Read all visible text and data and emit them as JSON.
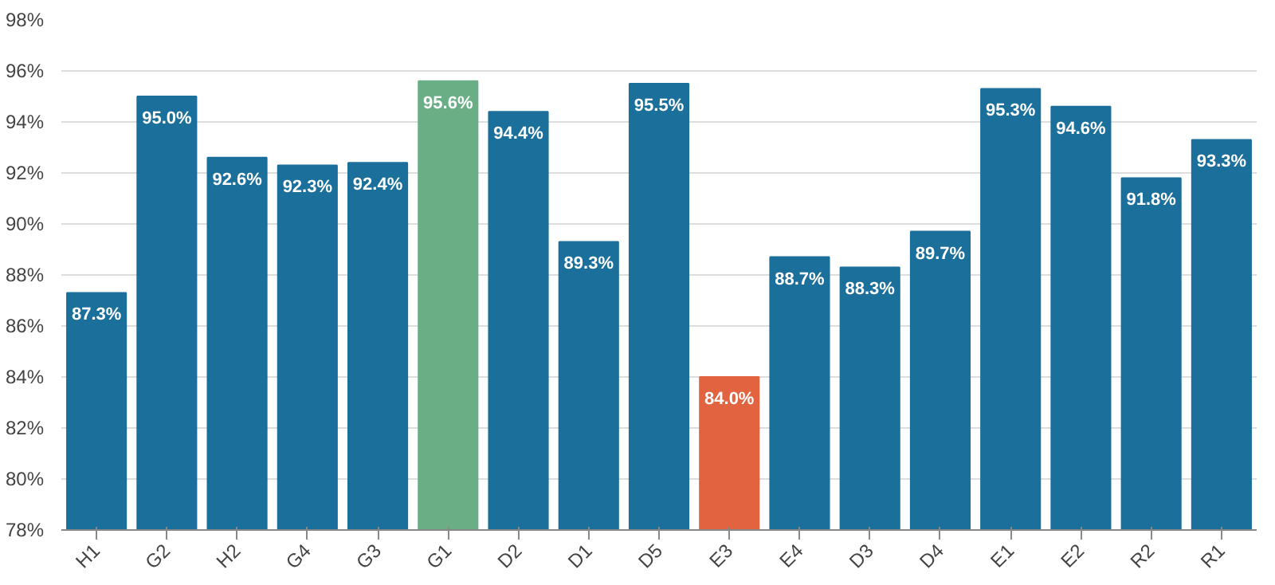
{
  "chart_data": {
    "type": "bar",
    "categories": [
      "H1",
      "G2",
      "H2",
      "G4",
      "G3",
      "G1",
      "D2",
      "D1",
      "D5",
      "E3",
      "E4",
      "D3",
      "D4",
      "E1",
      "E2",
      "R2",
      "R1"
    ],
    "values": [
      87.3,
      95.0,
      92.6,
      92.3,
      92.4,
      95.6,
      94.4,
      89.3,
      95.5,
      84.0,
      88.7,
      88.3,
      89.7,
      95.3,
      94.6,
      91.8,
      93.3
    ],
    "value_labels": [
      "87.3%",
      "95.0%",
      "92.6%",
      "92.3%",
      "92.4%",
      "95.6%",
      "94.4%",
      "89.3%",
      "95.5%",
      "84.0%",
      "88.7%",
      "88.3%",
      "89.7%",
      "95.3%",
      "94.6%",
      "91.8%",
      "93.3%"
    ],
    "colors": [
      "#1b6f9b",
      "#1b6f9b",
      "#1b6f9b",
      "#1b6f9b",
      "#1b6f9b",
      "#6aae86",
      "#1b6f9b",
      "#1b6f9b",
      "#1b6f9b",
      "#e2633f",
      "#1b6f9b",
      "#1b6f9b",
      "#1b6f9b",
      "#1b6f9b",
      "#1b6f9b",
      "#1b6f9b",
      "#1b6f9b"
    ],
    "ylim": [
      78,
      98
    ],
    "yticks": [
      {
        "value": 78,
        "label": "78%"
      },
      {
        "value": 80,
        "label": "80%"
      },
      {
        "value": 82,
        "label": "82%"
      },
      {
        "value": 84,
        "label": "84%"
      },
      {
        "value": 86,
        "label": "86%"
      },
      {
        "value": 88,
        "label": "88%"
      },
      {
        "value": 90,
        "label": "90%"
      },
      {
        "value": 92,
        "label": "92%"
      },
      {
        "value": 94,
        "label": "94%"
      },
      {
        "value": 96,
        "label": "96%"
      },
      {
        "value": 98,
        "label": "98%"
      }
    ],
    "grid": "y"
  }
}
